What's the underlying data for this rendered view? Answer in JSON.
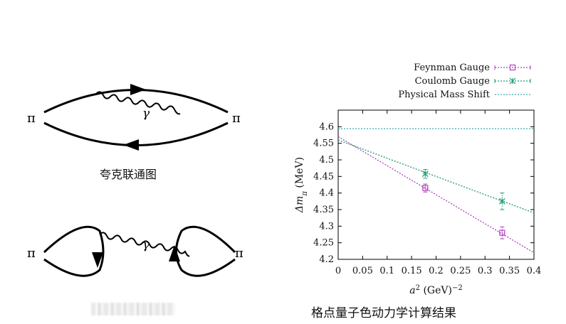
{
  "diagrams": {
    "top": {
      "left_particle": "π",
      "right_particle": "π",
      "photon": "γ",
      "caption": "夸克联通图"
    },
    "bottom": {
      "left_particle": "π",
      "right_particle": "π",
      "photon": "γ",
      "caption": ""
    }
  },
  "chart_caption": "格点量子色动力学计算结果",
  "chart_data": {
    "type": "scatter",
    "title": "",
    "xlabel_base": "a",
    "xlabel_sup": "2",
    "xlabel_unit": " (GeV)",
    "xlabel_unit_sup": "−2",
    "ylabel_delta": "Δm",
    "ylabel_sub": "π",
    "ylabel_unit": " (MeV)",
    "xlim": [
      0,
      0.4
    ],
    "ylim": [
      4.2,
      4.65
    ],
    "x_ticks": [
      "0",
      "0.05",
      "0.1",
      "0.15",
      "0.2",
      "0.25",
      "0.3",
      "0.35",
      "0.4"
    ],
    "y_ticks": [
      "4.2",
      "4.25",
      "4.3",
      "4.35",
      "4.4",
      "4.45",
      "4.5",
      "4.55",
      "4.6"
    ],
    "legend_position": "top-right, outside above plot",
    "series": [
      {
        "name": "Feynman Gauge",
        "color": "#b040c0",
        "marker": "square",
        "points": [
          {
            "x": 0.178,
            "y": 4.415,
            "xerr": 0.005,
            "yerr": 0.012
          },
          {
            "x": 0.335,
            "y": 4.28,
            "xerr": 0.005,
            "yerr": 0.018
          }
        ],
        "fit": {
          "x": [
            0,
            0.4
          ],
          "y": [
            4.57,
            4.22
          ]
        }
      },
      {
        "name": "Coulomb Gauge",
        "color": "#1a9a70",
        "marker": "star",
        "points": [
          {
            "x": 0.178,
            "y": 4.458,
            "xerr": 0.005,
            "yerr": 0.013
          },
          {
            "x": 0.335,
            "y": 4.375,
            "xerr": 0.005,
            "yerr": 0.025
          }
        ],
        "fit": {
          "x": [
            0,
            0.4
          ],
          "y": [
            4.56,
            4.34
          ]
        }
      },
      {
        "name": "Physical Mass Shift",
        "color": "#3aa8b0",
        "marker": "none",
        "fit": {
          "x": [
            0,
            0.4
          ],
          "y": [
            4.594,
            4.594
          ]
        }
      }
    ]
  }
}
